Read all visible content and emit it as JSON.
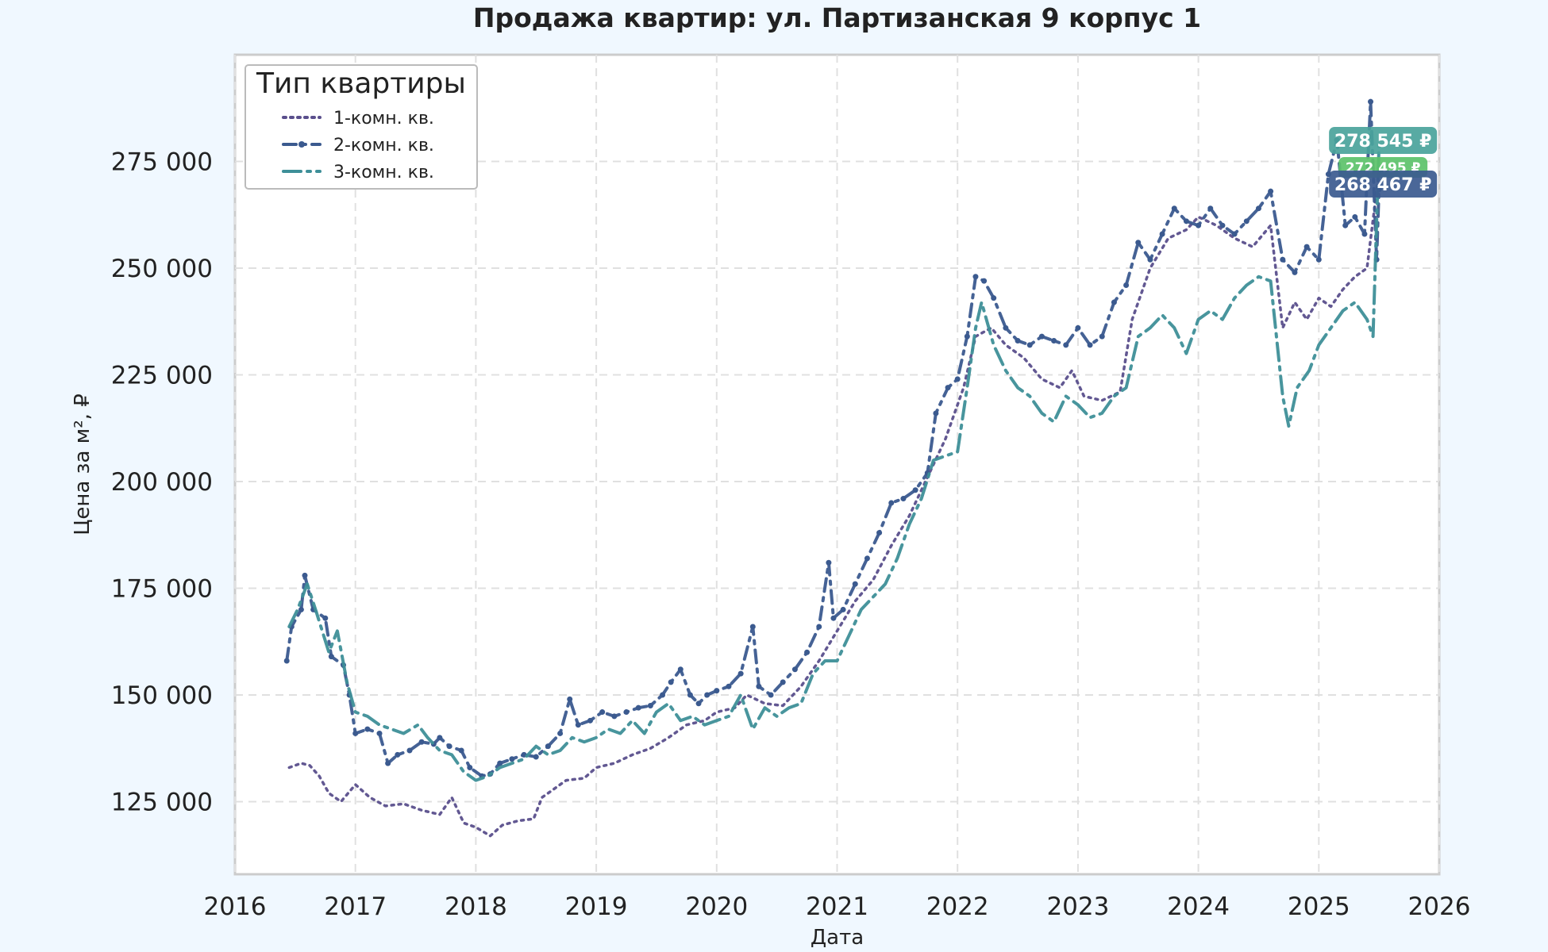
{
  "chart_data": {
    "type": "line",
    "title": "Продажа квартир: ул. Партизанская 9 корпус 1",
    "xlabel": "Дата",
    "ylabel": "Цена за м², ₽",
    "xlim": [
      2016.0,
      2026.0
    ],
    "ylim": [
      108000,
      300000
    ],
    "x_ticks": [
      2016,
      2017,
      2018,
      2019,
      2020,
      2021,
      2022,
      2023,
      2024,
      2025,
      2026
    ],
    "x_tick_labels": [
      "2016",
      "2017",
      "2018",
      "2019",
      "2020",
      "2021",
      "2022",
      "2023",
      "2024",
      "2025",
      "2026"
    ],
    "y_ticks": [
      125000,
      150000,
      175000,
      200000,
      225000,
      250000,
      275000
    ],
    "y_tick_labels": [
      "125 000",
      "150 000",
      "175 000",
      "200 000",
      "225 000",
      "250 000",
      "275 000"
    ],
    "grid": true,
    "legend": {
      "title": "Тип квартиры",
      "position": "top-left"
    },
    "series": [
      {
        "name": "1-комн. кв.",
        "color": "#5a4f8c",
        "style": "dotted",
        "points": [
          [
            2016.45,
            133000
          ],
          [
            2016.55,
            134000
          ],
          [
            2016.62,
            133500
          ],
          [
            2016.7,
            131000
          ],
          [
            2016.78,
            127000
          ],
          [
            2016.88,
            125000
          ],
          [
            2017.0,
            129000
          ],
          [
            2017.12,
            126000
          ],
          [
            2017.25,
            124000
          ],
          [
            2017.4,
            124500
          ],
          [
            2017.55,
            123000
          ],
          [
            2017.7,
            122000
          ],
          [
            2017.8,
            126000
          ],
          [
            2017.9,
            120000
          ],
          [
            2018.0,
            119000
          ],
          [
            2018.12,
            117000
          ],
          [
            2018.22,
            119500
          ],
          [
            2018.35,
            120500
          ],
          [
            2018.48,
            121000
          ],
          [
            2018.55,
            126000
          ],
          [
            2018.65,
            128000
          ],
          [
            2018.75,
            130000
          ],
          [
            2018.9,
            130500
          ],
          [
            2019.0,
            133000
          ],
          [
            2019.15,
            134000
          ],
          [
            2019.3,
            136000
          ],
          [
            2019.45,
            137500
          ],
          [
            2019.6,
            140000
          ],
          [
            2019.75,
            143000
          ],
          [
            2019.9,
            144000
          ],
          [
            2020.0,
            146000
          ],
          [
            2020.15,
            147000
          ],
          [
            2020.25,
            150000
          ],
          [
            2020.4,
            148000
          ],
          [
            2020.55,
            147500
          ],
          [
            2020.7,
            152000
          ],
          [
            2020.85,
            158000
          ],
          [
            2021.0,
            165000
          ],
          [
            2021.15,
            172000
          ],
          [
            2021.3,
            177000
          ],
          [
            2021.45,
            185000
          ],
          [
            2021.6,
            192000
          ],
          [
            2021.75,
            201000
          ],
          [
            2021.9,
            210000
          ],
          [
            2022.05,
            222000
          ],
          [
            2022.15,
            234000
          ],
          [
            2022.28,
            236000
          ],
          [
            2022.4,
            232000
          ],
          [
            2022.55,
            229000
          ],
          [
            2022.7,
            224000
          ],
          [
            2022.85,
            222000
          ],
          [
            2022.95,
            226000
          ],
          [
            2023.05,
            220000
          ],
          [
            2023.2,
            219000
          ],
          [
            2023.35,
            221000
          ],
          [
            2023.45,
            238000
          ],
          [
            2023.6,
            250000
          ],
          [
            2023.75,
            257000
          ],
          [
            2023.9,
            259000
          ],
          [
            2024.0,
            262000
          ],
          [
            2024.15,
            260000
          ],
          [
            2024.3,
            257000
          ],
          [
            2024.45,
            255000
          ],
          [
            2024.6,
            260000
          ],
          [
            2024.7,
            236000
          ],
          [
            2024.8,
            242000
          ],
          [
            2024.9,
            238000
          ],
          [
            2025.0,
            243000
          ],
          [
            2025.1,
            241000
          ],
          [
            2025.2,
            245000
          ],
          [
            2025.3,
            248000
          ],
          [
            2025.4,
            250000
          ],
          [
            2025.5,
            272495
          ]
        ]
      },
      {
        "name": "2-комн. кв.",
        "color": "#3b5a8f",
        "style": "dash-dot-marker",
        "points": [
          [
            2016.43,
            158000
          ],
          [
            2016.47,
            166000
          ],
          [
            2016.55,
            170000
          ],
          [
            2016.58,
            178000
          ],
          [
            2016.65,
            170000
          ],
          [
            2016.75,
            168000
          ],
          [
            2016.8,
            159000
          ],
          [
            2016.9,
            157000
          ],
          [
            2016.95,
            150000
          ],
          [
            2017.0,
            141000
          ],
          [
            2017.1,
            142000
          ],
          [
            2017.2,
            141000
          ],
          [
            2017.27,
            134000
          ],
          [
            2017.35,
            136000
          ],
          [
            2017.45,
            137000
          ],
          [
            2017.55,
            139000
          ],
          [
            2017.65,
            138500
          ],
          [
            2017.7,
            140000
          ],
          [
            2017.78,
            138000
          ],
          [
            2017.88,
            137000
          ],
          [
            2017.95,
            133000
          ],
          [
            2018.05,
            131000
          ],
          [
            2018.12,
            131500
          ],
          [
            2018.2,
            134000
          ],
          [
            2018.3,
            135000
          ],
          [
            2018.4,
            136000
          ],
          [
            2018.5,
            135500
          ],
          [
            2018.6,
            138000
          ],
          [
            2018.7,
            141000
          ],
          [
            2018.78,
            149000
          ],
          [
            2018.85,
            143000
          ],
          [
            2018.95,
            144000
          ],
          [
            2019.05,
            146000
          ],
          [
            2019.15,
            145000
          ],
          [
            2019.25,
            146000
          ],
          [
            2019.35,
            147000
          ],
          [
            2019.45,
            147500
          ],
          [
            2019.55,
            150000
          ],
          [
            2019.62,
            153000
          ],
          [
            2019.7,
            156000
          ],
          [
            2019.78,
            150000
          ],
          [
            2019.85,
            148000
          ],
          [
            2019.92,
            150000
          ],
          [
            2020.0,
            151000
          ],
          [
            2020.1,
            152000
          ],
          [
            2020.2,
            155000
          ],
          [
            2020.3,
            166000
          ],
          [
            2020.35,
            152000
          ],
          [
            2020.45,
            150000
          ],
          [
            2020.55,
            153000
          ],
          [
            2020.65,
            156000
          ],
          [
            2020.75,
            160000
          ],
          [
            2020.85,
            166000
          ],
          [
            2020.93,
            181000
          ],
          [
            2020.97,
            168000
          ],
          [
            2021.05,
            170000
          ],
          [
            2021.15,
            176000
          ],
          [
            2021.25,
            182000
          ],
          [
            2021.35,
            188000
          ],
          [
            2021.45,
            195000
          ],
          [
            2021.55,
            196000
          ],
          [
            2021.65,
            198000
          ],
          [
            2021.75,
            202000
          ],
          [
            2021.82,
            216000
          ],
          [
            2021.92,
            222000
          ],
          [
            2022.0,
            224000
          ],
          [
            2022.08,
            234000
          ],
          [
            2022.15,
            248000
          ],
          [
            2022.22,
            247000
          ],
          [
            2022.3,
            243000
          ],
          [
            2022.4,
            236000
          ],
          [
            2022.5,
            233000
          ],
          [
            2022.6,
            232000
          ],
          [
            2022.7,
            234000
          ],
          [
            2022.8,
            233000
          ],
          [
            2022.9,
            232000
          ],
          [
            2023.0,
            236000
          ],
          [
            2023.1,
            232000
          ],
          [
            2023.2,
            234000
          ],
          [
            2023.3,
            242000
          ],
          [
            2023.4,
            246000
          ],
          [
            2023.5,
            256000
          ],
          [
            2023.6,
            252000
          ],
          [
            2023.7,
            258000
          ],
          [
            2023.8,
            264000
          ],
          [
            2023.9,
            261000
          ],
          [
            2024.0,
            260000
          ],
          [
            2024.1,
            264000
          ],
          [
            2024.2,
            260000
          ],
          [
            2024.3,
            258000
          ],
          [
            2024.4,
            261000
          ],
          [
            2024.5,
            264000
          ],
          [
            2024.6,
            268000
          ],
          [
            2024.7,
            252000
          ],
          [
            2024.8,
            249000
          ],
          [
            2024.9,
            255000
          ],
          [
            2025.0,
            252000
          ],
          [
            2025.08,
            272000
          ],
          [
            2025.15,
            280000
          ],
          [
            2025.22,
            260000
          ],
          [
            2025.3,
            262000
          ],
          [
            2025.38,
            258000
          ],
          [
            2025.43,
            289000
          ],
          [
            2025.48,
            252000
          ],
          [
            2025.5,
            268467
          ]
        ]
      },
      {
        "name": "3-комн. кв.",
        "color": "#3e8f98",
        "style": "dash-dot",
        "points": [
          [
            2016.45,
            166000
          ],
          [
            2016.52,
            170000
          ],
          [
            2016.6,
            176000
          ],
          [
            2016.68,
            169000
          ],
          [
            2016.78,
            160000
          ],
          [
            2016.85,
            165000
          ],
          [
            2016.93,
            153000
          ],
          [
            2017.0,
            146000
          ],
          [
            2017.1,
            145000
          ],
          [
            2017.2,
            143000
          ],
          [
            2017.3,
            142000
          ],
          [
            2017.4,
            141000
          ],
          [
            2017.52,
            143000
          ],
          [
            2017.6,
            140000
          ],
          [
            2017.7,
            137000
          ],
          [
            2017.8,
            136000
          ],
          [
            2017.9,
            132000
          ],
          [
            2018.0,
            130000
          ],
          [
            2018.1,
            131000
          ],
          [
            2018.2,
            133000
          ],
          [
            2018.3,
            134000
          ],
          [
            2018.4,
            135000
          ],
          [
            2018.5,
            138000
          ],
          [
            2018.6,
            136000
          ],
          [
            2018.7,
            137000
          ],
          [
            2018.8,
            140000
          ],
          [
            2018.9,
            139000
          ],
          [
            2019.0,
            140000
          ],
          [
            2019.1,
            142000
          ],
          [
            2019.2,
            141000
          ],
          [
            2019.3,
            144000
          ],
          [
            2019.4,
            141000
          ],
          [
            2019.5,
            146000
          ],
          [
            2019.6,
            148000
          ],
          [
            2019.7,
            144000
          ],
          [
            2019.8,
            145000
          ],
          [
            2019.9,
            143000
          ],
          [
            2020.0,
            144000
          ],
          [
            2020.1,
            145000
          ],
          [
            2020.2,
            150000
          ],
          [
            2020.3,
            142000
          ],
          [
            2020.4,
            147000
          ],
          [
            2020.5,
            145000
          ],
          [
            2020.6,
            147000
          ],
          [
            2020.7,
            148000
          ],
          [
            2020.8,
            155000
          ],
          [
            2020.9,
            158000
          ],
          [
            2021.0,
            158000
          ],
          [
            2021.1,
            164000
          ],
          [
            2021.2,
            170000
          ],
          [
            2021.3,
            173000
          ],
          [
            2021.4,
            176000
          ],
          [
            2021.5,
            182000
          ],
          [
            2021.6,
            190000
          ],
          [
            2021.7,
            196000
          ],
          [
            2021.8,
            205000
          ],
          [
            2021.9,
            206000
          ],
          [
            2022.0,
            207000
          ],
          [
            2022.08,
            222000
          ],
          [
            2022.15,
            236000
          ],
          [
            2022.2,
            242000
          ],
          [
            2022.3,
            232000
          ],
          [
            2022.4,
            226000
          ],
          [
            2022.5,
            222000
          ],
          [
            2022.6,
            220000
          ],
          [
            2022.7,
            216000
          ],
          [
            2022.8,
            214000
          ],
          [
            2022.9,
            220000
          ],
          [
            2023.0,
            218000
          ],
          [
            2023.1,
            215000
          ],
          [
            2023.2,
            216000
          ],
          [
            2023.3,
            220000
          ],
          [
            2023.4,
            222000
          ],
          [
            2023.5,
            234000
          ],
          [
            2023.6,
            236000
          ],
          [
            2023.7,
            239000
          ],
          [
            2023.8,
            236000
          ],
          [
            2023.9,
            230000
          ],
          [
            2024.0,
            238000
          ],
          [
            2024.1,
            240000
          ],
          [
            2024.2,
            238000
          ],
          [
            2024.3,
            243000
          ],
          [
            2024.4,
            246000
          ],
          [
            2024.5,
            248000
          ],
          [
            2024.6,
            247000
          ],
          [
            2024.7,
            220000
          ],
          [
            2024.75,
            213000
          ],
          [
            2024.82,
            222000
          ],
          [
            2024.92,
            226000
          ],
          [
            2025.0,
            232000
          ],
          [
            2025.1,
            236000
          ],
          [
            2025.2,
            240000
          ],
          [
            2025.3,
            242000
          ],
          [
            2025.4,
            238000
          ],
          [
            2025.45,
            234000
          ],
          [
            2025.5,
            278545
          ]
        ]
      }
    ],
    "annotations": [
      {
        "text": "278 545 ₽",
        "x": 2025.5,
        "y": 278545,
        "color": "#4aa39b"
      },
      {
        "text": "272 495 ₽",
        "x": 2025.5,
        "y": 272495,
        "color": "#5cc26a"
      },
      {
        "text": "268 467 ₽",
        "x": 2025.5,
        "y": 268467,
        "color": "#3b5a8f"
      }
    ]
  }
}
